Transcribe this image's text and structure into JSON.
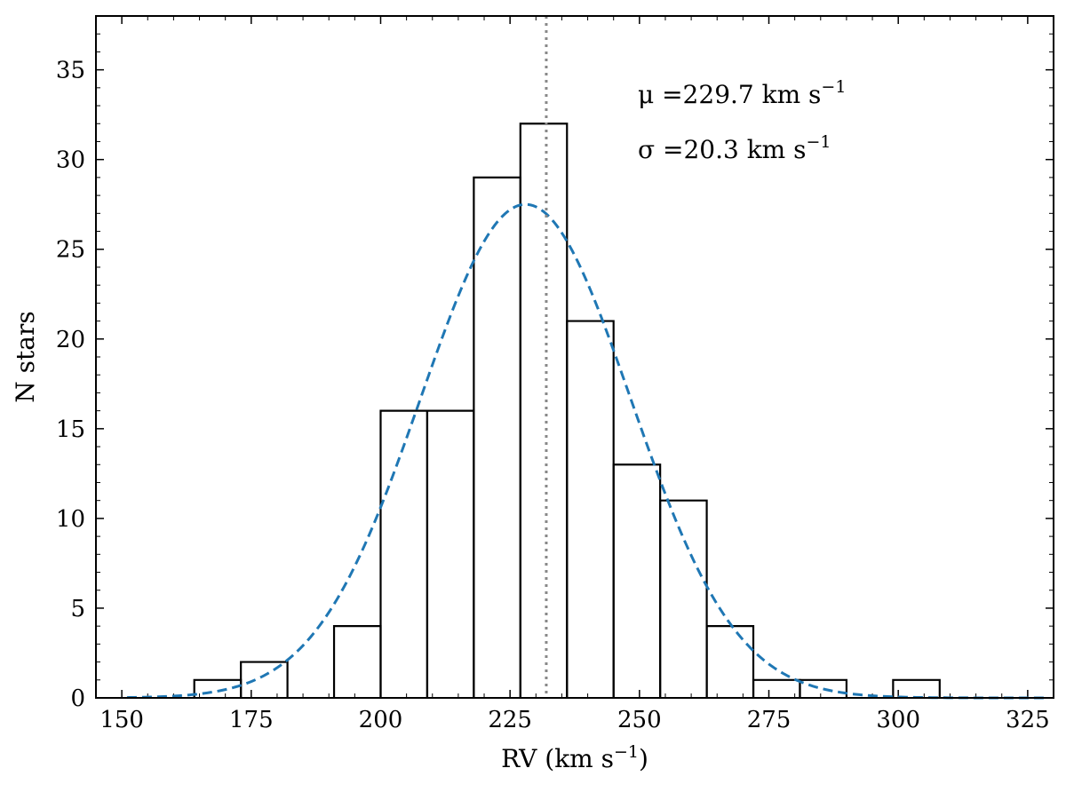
{
  "chart_data": {
    "type": "bar",
    "title": "",
    "xlabel": {
      "prefix": "RV (km s",
      "sup": "−1",
      "suffix": ")"
    },
    "ylabel": "N stars",
    "xlim": [
      145,
      330
    ],
    "ylim": [
      0,
      38
    ],
    "xticks": [
      150,
      175,
      200,
      225,
      250,
      275,
      300,
      325
    ],
    "yticks": [
      0,
      5,
      10,
      15,
      20,
      25,
      30,
      35
    ],
    "histogram": {
      "bins": [
        {
          "x0": 164,
          "x1": 173,
          "count": 1
        },
        {
          "x0": 173,
          "x1": 182,
          "count": 2
        },
        {
          "x0": 182,
          "x1": 191,
          "count": 0
        },
        {
          "x0": 191,
          "x1": 200,
          "count": 4
        },
        {
          "x0": 200,
          "x1": 209,
          "count": 16
        },
        {
          "x0": 209,
          "x1": 218,
          "count": 16
        },
        {
          "x0": 218,
          "x1": 227,
          "count": 29
        },
        {
          "x0": 227,
          "x1": 236,
          "count": 32
        },
        {
          "x0": 236,
          "x1": 245,
          "count": 21
        },
        {
          "x0": 245,
          "x1": 254,
          "count": 13
        },
        {
          "x0": 254,
          "x1": 263,
          "count": 11
        },
        {
          "x0": 263,
          "x1": 272,
          "count": 4
        },
        {
          "x0": 272,
          "x1": 281,
          "count": 1
        },
        {
          "x0": 281,
          "x1": 290,
          "count": 1
        },
        {
          "x0": 290,
          "x1": 299,
          "count": 0
        },
        {
          "x0": 299,
          "x1": 308,
          "count": 1
        }
      ],
      "color": "#000000"
    },
    "gaussian_fit": {
      "mu": 229.7,
      "sigma": 20.3,
      "amplitude": 27.5,
      "peak_x": 228,
      "x_range": [
        151,
        329
      ],
      "color": "#1f77b4",
      "style": "dashed"
    },
    "vline": {
      "x": 232,
      "color": "#888888",
      "style": "dotted"
    },
    "annotations": [
      {
        "prefix": "μ =229.7 km s",
        "sup": "−1"
      },
      {
        "prefix": "σ =20.3 km s",
        "sup": "−1"
      }
    ]
  }
}
